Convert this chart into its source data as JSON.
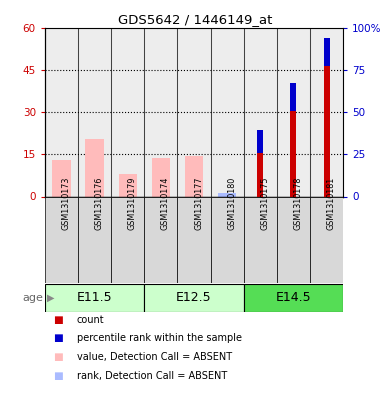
{
  "title": "GDS5642 / 1446149_at",
  "samples": [
    "GSM1310173",
    "GSM1310176",
    "GSM1310179",
    "GSM1310174",
    "GSM1310177",
    "GSM1310180",
    "GSM1310175",
    "GSM1310178",
    "GSM1310181"
  ],
  "groups": [
    {
      "label": "E11.5",
      "indices": [
        0,
        1,
        2
      ]
    },
    {
      "label": "E12.5",
      "indices": [
        3,
        4,
        5
      ]
    },
    {
      "label": "E14.5",
      "indices": [
        6,
        7,
        8
      ]
    }
  ],
  "group_colors": [
    "#ccffcc",
    "#ccffcc",
    "#55dd55"
  ],
  "count_values": [
    0,
    0,
    0,
    0,
    0,
    0,
    15.5,
    30.5,
    46.5
  ],
  "percentile_values": [
    0,
    0,
    0,
    0,
    0,
    0,
    13.5,
    16.5,
    16.0
  ],
  "absent_value_values": [
    13.0,
    20.5,
    8.0,
    13.5,
    14.5,
    0,
    0,
    0,
    0
  ],
  "absent_rank_values": [
    0,
    0,
    0,
    0,
    0,
    2.0,
    0,
    0,
    0
  ],
  "ylim_left": [
    0,
    60
  ],
  "ylim_right": [
    0,
    100
  ],
  "yticks_left": [
    0,
    15,
    30,
    45,
    60
  ],
  "yticks_right": [
    0,
    25,
    50,
    75,
    100
  ],
  "ytick_labels_right": [
    "0",
    "25",
    "50",
    "75",
    "100%"
  ],
  "left_color": "#cc0000",
  "right_color": "#0000cc",
  "absent_value_color": "#ffbbbb",
  "absent_rank_color": "#aabbff",
  "count_color": "#cc0000",
  "pct_color": "#0000cc",
  "legend_items": [
    {
      "label": "count",
      "color": "#cc0000"
    },
    {
      "label": "percentile rank within the sample",
      "color": "#0000cc"
    },
    {
      "label": "value, Detection Call = ABSENT",
      "color": "#ffbbbb"
    },
    {
      "label": "rank, Detection Call = ABSENT",
      "color": "#aabbff"
    }
  ]
}
